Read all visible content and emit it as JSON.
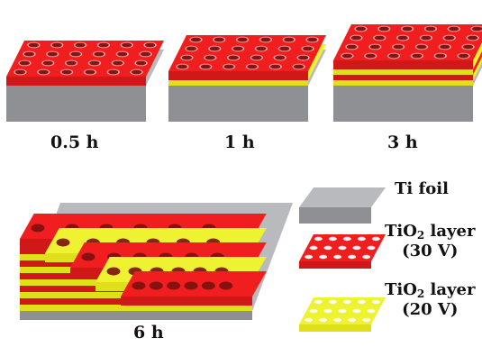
{
  "colors": {
    "red_layer": "#f01e1e",
    "red_side": "#d11818",
    "yellow_layer": "#eef230",
    "yellow_side": "#e0e01a",
    "ti_top": "#b9babd",
    "ti_side": "#8f9094",
    "hole_dark": "#7a0f0f"
  },
  "panels": [
    {
      "label": "0.5 h",
      "layers": [
        "red"
      ]
    },
    {
      "label": "1 h",
      "layers": [
        "red",
        "yellow"
      ]
    },
    {
      "label": "3 h",
      "layers": [
        "red",
        "yellow",
        "red",
        "yellow"
      ]
    },
    {
      "label": "6 h",
      "layers": [
        "red",
        "yellow",
        "red",
        "yellow",
        "red",
        "yellow",
        "red",
        "yellow",
        "red",
        "yellow"
      ]
    }
  ],
  "legend": {
    "ti_foil": "Ti foil",
    "tio2_30": {
      "name_main": "TiO",
      "name_sub": "2",
      "name_rest": " layer",
      "condition": "(30 V)"
    },
    "tio2_20": {
      "name_main": "TiO",
      "name_sub": "2",
      "name_rest": " layer",
      "condition": "(20 V)"
    }
  }
}
